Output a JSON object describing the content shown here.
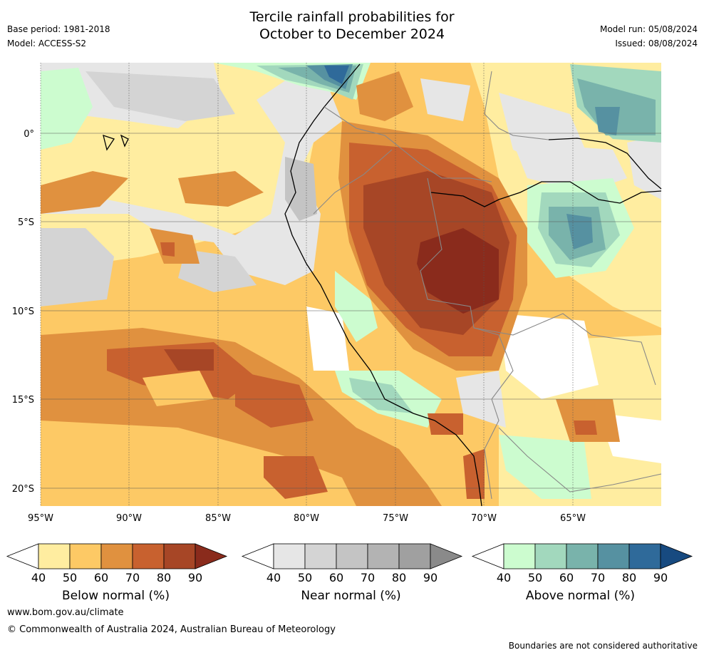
{
  "title": {
    "line1": "Tercile rainfall probabilities for",
    "line2": "October to December 2024"
  },
  "meta_left": {
    "base_period": "Base period: 1981-2018",
    "model": "Model: ACCESS-S2"
  },
  "meta_right": {
    "model_run": "Model run: 05/08/2024",
    "issued": "Issued: 08/08/2024"
  },
  "map": {
    "lon_labels": [
      "95°W",
      "90°W",
      "85°W",
      "80°W",
      "75°W",
      "70°W",
      "65°W"
    ],
    "lat_labels": [
      "0°",
      "5°S",
      "10°S",
      "15°S",
      "20°S"
    ]
  },
  "legends": [
    {
      "label": "Below normal (%)",
      "ticks": [
        "40",
        "50",
        "60",
        "70",
        "80",
        "90"
      ],
      "colors": [
        "#ffffff",
        "#ffeda0",
        "#fdc965",
        "#e0913f",
        "#c8612f",
        "#a74626",
        "#8a2b1c"
      ]
    },
    {
      "label": "Near normal (%)",
      "ticks": [
        "40",
        "50",
        "60",
        "70",
        "80",
        "90"
      ],
      "colors": [
        "#ffffff",
        "#e6e6e6",
        "#d4d4d4",
        "#c4c4c4",
        "#b3b3b3",
        "#a0a0a0",
        "#8a8a8a"
      ]
    },
    {
      "label": "Above normal (%)",
      "ticks": [
        "40",
        "50",
        "60",
        "70",
        "80",
        "90"
      ],
      "colors": [
        "#ffffff",
        "#ccfccf",
        "#a2d8bd",
        "#79b3ab",
        "#5691a1",
        "#2f6a9a",
        "#174a80"
      ]
    }
  ],
  "footer": {
    "url": "www.bom.gov.au/climate",
    "copyright": "© Commonwealth of Australia 2024, Australian Bureau of Meteorology",
    "note": "Boundaries are not considered authoritative"
  }
}
